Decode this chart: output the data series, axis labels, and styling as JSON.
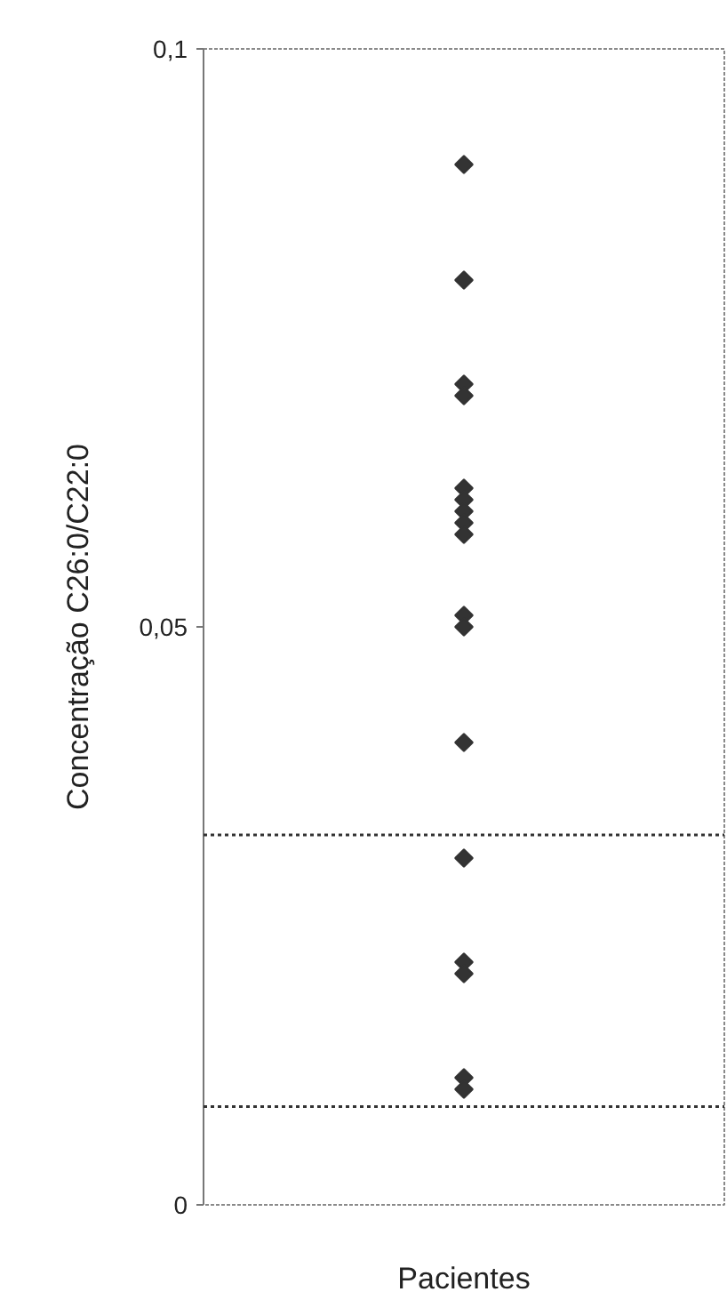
{
  "chart_data": {
    "type": "scatter",
    "ylabel": "Concentração C26:0/C22:0",
    "categories": [
      "Pacientes"
    ],
    "series": [
      {
        "color": "#333333",
        "x": [
          "Pacientes",
          "Pacientes",
          "Pacientes",
          "Pacientes",
          "Pacientes",
          "Pacientes",
          "Pacientes",
          "Pacientes",
          "Pacientes",
          "Pacientes",
          "Pacientes",
          "Pacientes",
          "Pacientes",
          "Pacientes",
          "Pacientes",
          "Pacientes",
          "Pacientes"
        ],
        "values": [
          0.09,
          0.08,
          0.071,
          0.07,
          0.062,
          0.061,
          0.06,
          0.059,
          0.058,
          0.051,
          0.05,
          0.04,
          0.03,
          0.021,
          0.02,
          0.011,
          0.01
        ]
      }
    ],
    "ylim": [
      0,
      0.1
    ],
    "yticks": [
      0,
      {
        "value": 0.05,
        "label": "0,05"
      },
      {
        "value": 0.1,
        "label": "0,1"
      }
    ],
    "ref_lines": [
      {
        "axis": "y",
        "value": 0.032,
        "color": "#333333",
        "line_style": "dotted"
      },
      {
        "axis": "y",
        "value": 0.0085,
        "color": "#333333",
        "line_style": "dotted"
      }
    ],
    "marker": "diamond",
    "grid": false
  }
}
